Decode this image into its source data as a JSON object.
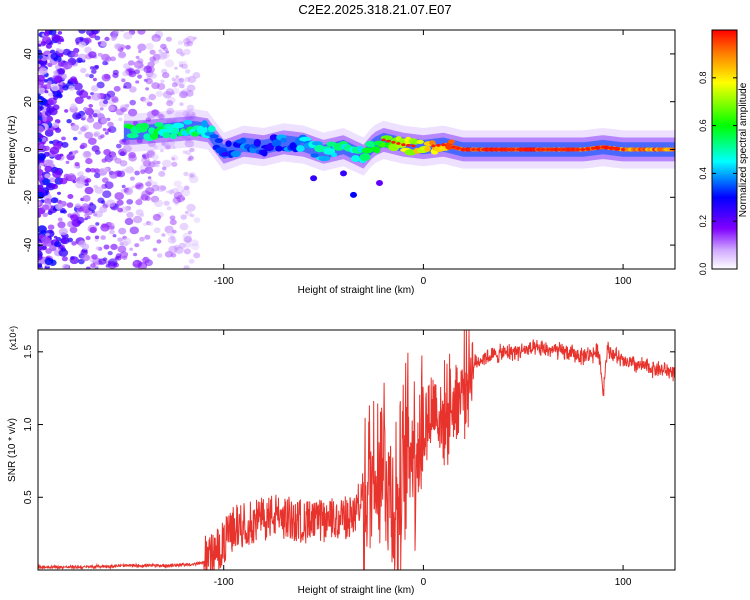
{
  "title": "C2E2.2025.318.21.07.E07",
  "chart_data": [
    {
      "type": "heatmap",
      "title": "C2E2.2025.318.21.07.E07",
      "xlabel": "Height of straight line (km)",
      "ylabel": "Frequency (Hz)",
      "xlim": [
        -193,
        126
      ],
      "ylim": [
        -50,
        50
      ],
      "xticks": [
        -100,
        0,
        100
      ],
      "xtick_labels": [
        "-100",
        "0",
        "100"
      ],
      "yticks": [
        -40,
        -20,
        0,
        20,
        40
      ],
      "ytick_labels": [
        "-40",
        "-20",
        "0",
        "20",
        "40"
      ],
      "colorbar": {
        "label": "Normalized spectral amplitude",
        "range": [
          0,
          1
        ],
        "ticks": [
          0,
          0.2,
          0.4,
          0.6,
          0.8
        ],
        "tick_labels": [
          "0.0",
          "0.2",
          "0.4",
          "0.6",
          "0.8"
        ],
        "colormap": "rainbow",
        "colors": [
          "#ffffff",
          "#7f00ff",
          "#0000ff",
          "#00ffff",
          "#00ff00",
          "#ffff00",
          "#ff0000"
        ]
      },
      "trend": {
        "x": [
          -145,
          -130,
          -115,
          -108,
          -100,
          -90,
          -80,
          -70,
          -60,
          -50,
          -40,
          -30,
          -25,
          -20,
          -10,
          0,
          10,
          20,
          40,
          60,
          80,
          90,
          100,
          126
        ],
        "freq": [
          7,
          8,
          9,
          8,
          -1,
          2,
          1,
          3,
          2,
          -1,
          1,
          -3,
          2,
          4,
          2,
          1,
          2,
          0,
          0,
          0,
          0,
          1,
          0,
          0
        ],
        "amplitude": [
          0.55,
          0.5,
          0.5,
          0.45,
          0.3,
          0.35,
          0.3,
          0.35,
          0.4,
          0.45,
          0.5,
          0.5,
          0.55,
          0.6,
          0.7,
          0.8,
          0.85,
          0.95,
          0.95,
          0.95,
          0.9,
          0.95,
          0.9,
          0.9
        ]
      }
    },
    {
      "type": "line",
      "xlabel": "Height of straight line (km)",
      "ylabel": "SNR (10 * v/v)",
      "y_multiplier_label": "(x10⁴)",
      "xlim": [
        -193,
        126
      ],
      "ylim": [
        0,
        1.65
      ],
      "xticks": [
        -100,
        0,
        100
      ],
      "xtick_labels": [
        "-100",
        "0",
        "100"
      ],
      "yticks": [
        0.5,
        1.0,
        1.5
      ],
      "ytick_labels": [
        "0.5",
        "1.0",
        "1.5"
      ],
      "color": "#e8322c",
      "series": [
        {
          "name": "SNR",
          "x": [
            -193,
            -170,
            -150,
            -130,
            -115,
            -105,
            -100,
            -95,
            -85,
            -75,
            -65,
            -55,
            -45,
            -35,
            -28,
            -24,
            -20,
            -16,
            -12,
            -8,
            -4,
            0,
            3,
            6,
            9,
            12,
            18,
            24,
            30,
            40,
            50,
            60,
            70,
            80,
            88,
            90,
            92,
            100,
            110,
            126
          ],
          "y": [
            0.02,
            0.02,
            0.03,
            0.03,
            0.04,
            0.06,
            0.14,
            0.25,
            0.28,
            0.33,
            0.3,
            0.28,
            0.3,
            0.32,
            0.55,
            0.75,
            0.82,
            0.5,
            0.42,
            0.85,
            0.88,
            0.95,
            1.05,
            1.15,
            1.0,
            1.1,
            1.2,
            1.4,
            1.46,
            1.49,
            1.51,
            1.52,
            1.5,
            1.47,
            1.5,
            1.22,
            1.52,
            1.43,
            1.4,
            1.36
          ]
        }
      ]
    }
  ]
}
